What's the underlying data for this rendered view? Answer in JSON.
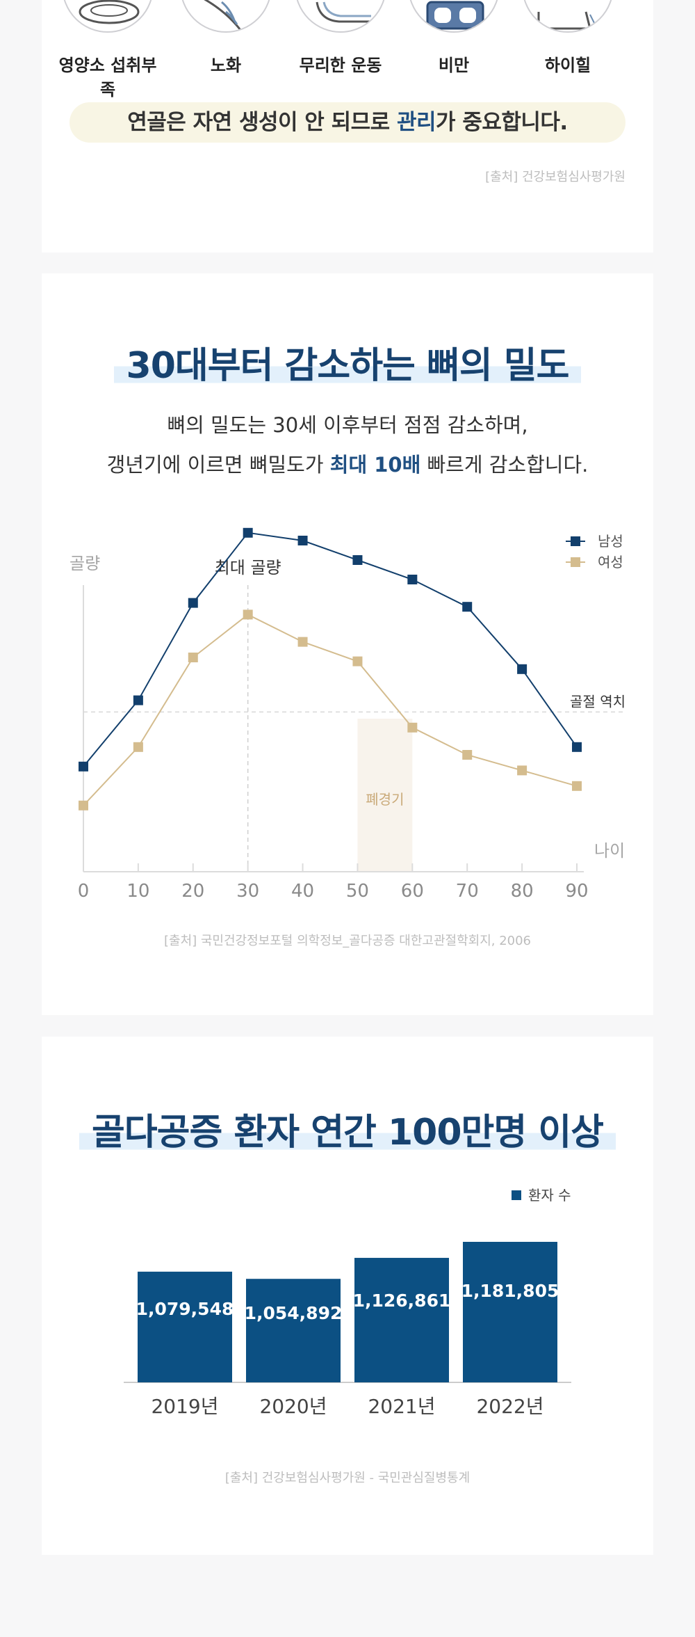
{
  "causes": [
    {
      "label": "영양소 섭취부족",
      "icon": "plate-icon"
    },
    {
      "label": "노화",
      "icon": "dna-icon"
    },
    {
      "label": "무리한 운동",
      "icon": "foot-icon"
    },
    {
      "label": "비만",
      "icon": "scale-icon"
    },
    {
      "label": "하이힐",
      "icon": "high-heel-icon"
    }
  ],
  "banner": {
    "before": "연골은 자연 생성이 안 되므로 ",
    "highlight": "관리",
    "after": "가 중요합니다."
  },
  "source1": "[출처] 건강보험심사평가원",
  "section2": {
    "title": "30대부터 감소하는 뼈의 밀도",
    "desc_line1": "뼈의 밀도는 30세 이후부터 점점 감소하며,",
    "desc_line2_before": "갱년기에 이르면 뼈밀도가 ",
    "desc_line2_strong": "최대 10배",
    "desc_line2_after": " 빠르게 감소합니다.",
    "source": "[출처] 국민건강정보포털 의학정보_골다공증 대한고관절학회지, 2006"
  },
  "section3": {
    "title": "골다공증 환자 연간 100만명 이상",
    "source": "[출처] 건강보험심사평가원 - 국민관심질병통계"
  },
  "colors": {
    "men": "#123f6c",
    "women": "#d4bc8e",
    "bar": "#0c5083",
    "accent": "#1f4f82"
  },
  "chart_data": [
    {
      "type": "line",
      "title": "",
      "xlabel": "나이",
      "ylabel": "골량",
      "x": [
        0,
        10,
        20,
        30,
        40,
        50,
        60,
        70,
        80,
        90
      ],
      "xlim": [
        0,
        90
      ],
      "ylim": [
        0,
        100
      ],
      "series": [
        {
          "name": "남성",
          "values": [
            27,
            44,
            69,
            87,
            85,
            80,
            75,
            68,
            52,
            32
          ]
        },
        {
          "name": "여성",
          "values": [
            17,
            32,
            55,
            66,
            59,
            54,
            37,
            30,
            26,
            22
          ]
        }
      ],
      "annotations": {
        "peak_label": "최대 골량",
        "peak_x": 30,
        "threshold_label": "골절 역치",
        "threshold_y": 41,
        "menopause_label": "폐경기",
        "menopause_range": [
          50,
          60
        ]
      },
      "legend": "top-right",
      "grid": false
    },
    {
      "type": "bar",
      "title": "",
      "categories": [
        "2019년",
        "2020년",
        "2021년",
        "2022년"
      ],
      "series": [
        {
          "name": "환자 수",
          "values": [
            1079548,
            1054892,
            1126861,
            1181805
          ]
        }
      ],
      "value_labels": [
        "1,079,548",
        "1,054,892",
        "1,126,861",
        "1,181,805"
      ],
      "legend": "top-right",
      "grid": false
    }
  ]
}
